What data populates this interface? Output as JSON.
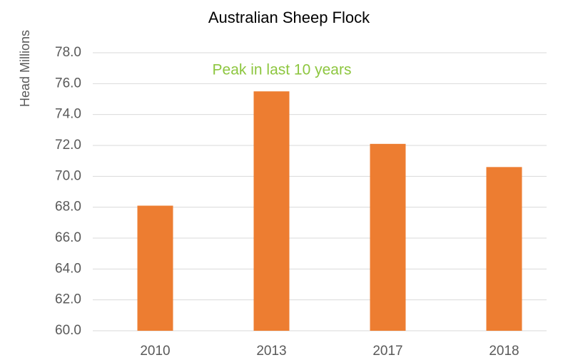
{
  "chart_data": {
    "type": "bar",
    "title": "Australian Sheep Flock",
    "y_label": "Head Millions",
    "annotation": "Peak in last 10 years",
    "categories": [
      "2010",
      "2013",
      "2017",
      "2018"
    ],
    "values": [
      68.1,
      75.5,
      72.1,
      70.6
    ],
    "color": "#ed7d31",
    "ylim": [
      60,
      78
    ],
    "yticks": [
      {
        "value": 60,
        "label": "60.0"
      },
      {
        "value": 62,
        "label": "62.0"
      },
      {
        "value": 64,
        "label": "64.0"
      },
      {
        "value": 66,
        "label": "66.0"
      },
      {
        "value": 68,
        "label": "68.0"
      },
      {
        "value": 70,
        "label": "70.0"
      },
      {
        "value": 72,
        "label": "72.0"
      },
      {
        "value": 74,
        "label": "74.0"
      },
      {
        "value": 76,
        "label": "76.0"
      },
      {
        "value": 78,
        "label": "78.0"
      }
    ],
    "grid": true
  }
}
